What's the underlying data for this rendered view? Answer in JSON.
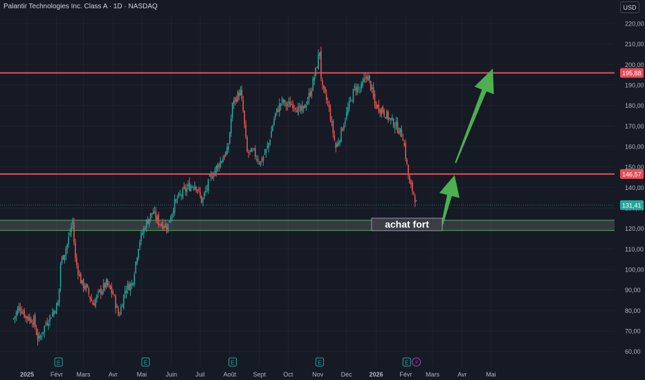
{
  "header": {
    "symbol": "Palantir Technologies Inc. Class A · 1D · NASDAQ",
    "currency": "USD"
  },
  "annotations": {
    "zone_label": "achat fort"
  },
  "colors": {
    "background": "#161a25",
    "up": "#26a69a",
    "down": "#ef5350",
    "level_line": "#e84d56",
    "zone_border": "#4caf50",
    "arrow": "#4caf50",
    "last_price_badge": "#26a69a",
    "axis_text": "#b2b5be",
    "grid": "#1f2330",
    "earnings_icon": "#26a69a",
    "dividend_icon": "#ab47bc"
  },
  "icons": {
    "earnings": "E",
    "lightning": "⚡"
  },
  "chart_data": {
    "type": "candlestick",
    "title": "Palantir Technologies Inc. Class A · 1D · NASDAQ",
    "currency": "USD",
    "xlabel": "",
    "ylabel": "",
    "ylim": [
      57,
      226
    ],
    "y_ticks": [
      "60,00",
      "70,00",
      "80,00",
      "90,00",
      "100,00",
      "110,00",
      "120,00",
      "130,00",
      "140,00",
      "150,00",
      "160,00",
      "170,00",
      "180,00",
      "190,00",
      "200,00",
      "210,00",
      "220,00"
    ],
    "x_ticks": [
      {
        "label": "2025",
        "date": "2025-01-01",
        "bold": true
      },
      {
        "label": "Févr",
        "date": "2025-02-01",
        "bold": false
      },
      {
        "label": "Mars",
        "date": "2025-03-01",
        "bold": false
      },
      {
        "label": "Avr",
        "date": "2025-04-01",
        "bold": false
      },
      {
        "label": "Mai",
        "date": "2025-05-01",
        "bold": false
      },
      {
        "label": "Juin",
        "date": "2025-06-01",
        "bold": false
      },
      {
        "label": "Juil",
        "date": "2025-07-01",
        "bold": false
      },
      {
        "label": "Août",
        "date": "2025-08-01",
        "bold": false
      },
      {
        "label": "Sept",
        "date": "2025-09-01",
        "bold": false
      },
      {
        "label": "Oct",
        "date": "2025-10-01",
        "bold": false
      },
      {
        "label": "Nov",
        "date": "2025-11-01",
        "bold": false
      },
      {
        "label": "Déc",
        "date": "2025-12-01",
        "bold": false
      },
      {
        "label": "2026",
        "date": "2026-01-01",
        "bold": true
      },
      {
        "label": "Févr",
        "date": "2026-02-01",
        "bold": false
      },
      {
        "label": "Mars",
        "date": "2026-03-01",
        "bold": false
      },
      {
        "label": "Avr",
        "date": "2026-04-01",
        "bold": false
      },
      {
        "label": "Mai",
        "date": "2026-05-01",
        "bold": false
      }
    ],
    "price_path": [
      [
        "2024-12-18",
        76
      ],
      [
        "2024-12-24",
        82
      ],
      [
        "2024-12-31",
        77
      ],
      [
        "2025-01-08",
        75
      ],
      [
        "2025-01-13",
        65
      ],
      [
        "2025-01-21",
        74
      ],
      [
        "2025-01-28",
        79
      ],
      [
        "2025-02-03",
        84
      ],
      [
        "2025-02-05",
        103
      ],
      [
        "2025-02-12",
        112
      ],
      [
        "2025-02-18",
        124
      ],
      [
        "2025-02-20",
        106
      ],
      [
        "2025-02-27",
        93
      ],
      [
        "2025-03-04",
        91
      ],
      [
        "2025-03-11",
        83
      ],
      [
        "2025-03-18",
        89
      ],
      [
        "2025-03-25",
        93
      ],
      [
        "2025-04-01",
        88
      ],
      [
        "2025-04-07",
        77
      ],
      [
        "2025-04-14",
        91
      ],
      [
        "2025-04-21",
        93
      ],
      [
        "2025-04-28",
        113
      ],
      [
        "2025-05-05",
        122
      ],
      [
        "2025-05-12",
        128
      ],
      [
        "2025-05-19",
        123
      ],
      [
        "2025-05-28",
        121
      ],
      [
        "2025-06-04",
        132
      ],
      [
        "2025-06-10",
        136
      ],
      [
        "2025-06-18",
        140
      ],
      [
        "2025-06-26",
        142
      ],
      [
        "2025-07-03",
        133
      ],
      [
        "2025-07-11",
        144
      ],
      [
        "2025-07-21",
        152
      ],
      [
        "2025-07-30",
        158
      ],
      [
        "2025-08-04",
        181
      ],
      [
        "2025-08-12",
        187
      ],
      [
        "2025-08-15",
        177
      ],
      [
        "2025-08-19",
        157
      ],
      [
        "2025-08-26",
        157
      ],
      [
        "2025-09-02",
        152
      ],
      [
        "2025-09-10",
        160
      ],
      [
        "2025-09-17",
        175
      ],
      [
        "2025-09-24",
        182
      ],
      [
        "2025-09-30",
        180
      ],
      [
        "2025-10-07",
        181
      ],
      [
        "2025-10-13",
        177
      ],
      [
        "2025-10-17",
        178
      ],
      [
        "2025-10-24",
        186
      ],
      [
        "2025-10-30",
        197
      ],
      [
        "2025-11-03",
        207
      ],
      [
        "2025-11-05",
        189
      ],
      [
        "2025-11-12",
        180
      ],
      [
        "2025-11-20",
        159
      ],
      [
        "2025-11-26",
        168
      ],
      [
        "2025-12-03",
        179
      ],
      [
        "2025-12-10",
        189
      ],
      [
        "2025-12-16",
        188
      ],
      [
        "2025-12-22",
        195
      ],
      [
        "2025-12-26",
        190
      ],
      [
        "2025-12-31",
        180
      ],
      [
        "2026-01-07",
        178
      ],
      [
        "2026-01-14",
        174
      ],
      [
        "2026-01-22",
        170
      ],
      [
        "2026-01-29",
        165
      ],
      [
        "2026-02-03",
        148
      ],
      [
        "2026-02-05",
        141
      ],
      [
        "2026-02-09",
        138
      ],
      [
        "2026-02-12",
        132
      ],
      [
        "2026-02-13",
        131.41
      ]
    ],
    "last_price": "131,41",
    "levels": [
      {
        "value": 195.88,
        "label": "195,88"
      },
      {
        "value": 146.57,
        "label": "146,57"
      }
    ],
    "zone": {
      "from": 119,
      "to": 124,
      "label": "achat fort"
    },
    "projection_arrows": [
      {
        "from": [
          "2026-03-10",
          120
        ],
        "to": [
          "2026-03-24",
          146
        ]
      },
      {
        "from": [
          "2026-03-25",
          152
        ],
        "to": [
          "2026-05-03",
          198
        ]
      }
    ],
    "event_markers": [
      {
        "type": "earnings",
        "icon": "E",
        "date": "2025-02-03"
      },
      {
        "type": "earnings",
        "icon": "E",
        "date": "2025-05-05"
      },
      {
        "type": "earnings",
        "icon": "E",
        "date": "2025-08-04"
      },
      {
        "type": "earnings",
        "icon": "E",
        "date": "2025-11-03"
      },
      {
        "type": "earnings",
        "icon": "E",
        "date": "2026-02-02"
      },
      {
        "type": "dividend",
        "icon": "⚡",
        "date": "2026-02-12"
      }
    ]
  }
}
